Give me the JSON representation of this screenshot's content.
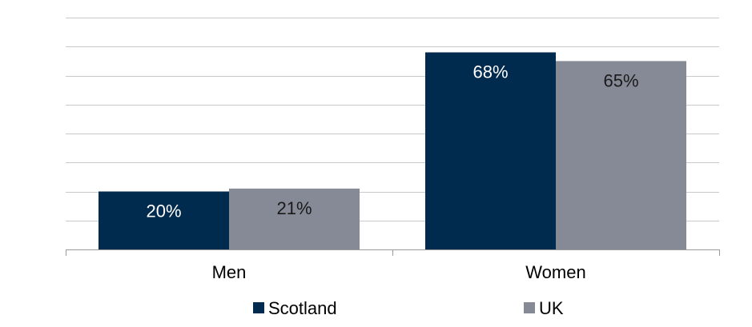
{
  "chart_data": {
    "type": "bar",
    "categories": [
      "Men",
      "Women"
    ],
    "series": [
      {
        "name": "Scotland",
        "values": [
          20,
          68
        ],
        "labels": [
          "20%",
          "68%"
        ],
        "color": "#002a4e",
        "label_color": "#ffffff"
      },
      {
        "name": "UK",
        "values": [
          21,
          65
        ],
        "labels": [
          "21%",
          "65%"
        ],
        "color": "#868a96",
        "label_color": "#1a1a1a"
      }
    ],
    "ylim": [
      0,
      80
    ],
    "ytick_step": 10,
    "grid": true,
    "legend_position": "bottom",
    "title": "",
    "xlabel": "",
    "ylabel": ""
  }
}
